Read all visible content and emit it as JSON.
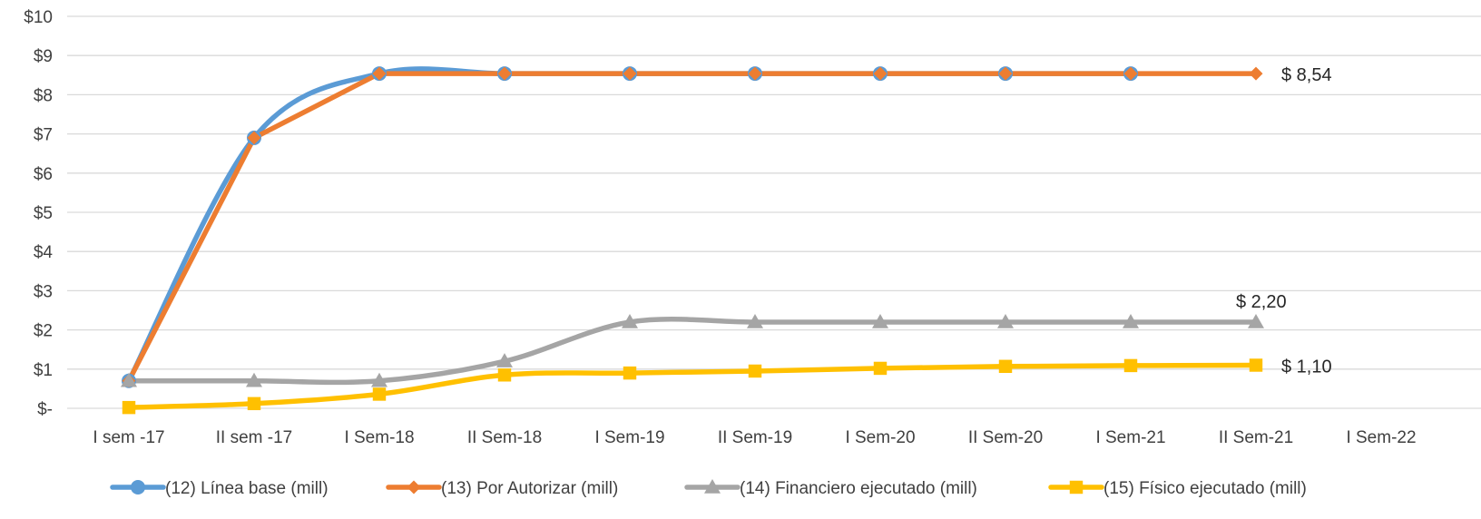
{
  "chart_data": {
    "type": "line",
    "categories": [
      "I sem -17",
      "II sem -17",
      "I Sem-18",
      "II Sem-18",
      "I Sem-19",
      "II Sem-19",
      "I Sem-20",
      "II Sem-20",
      "I Sem-21",
      "II Sem-21",
      "I Sem-22"
    ],
    "y_tick_labels": [
      "$-",
      "$1",
      "$2",
      "$3",
      "$4",
      "$5",
      "$6",
      "$7",
      "$8",
      "$9",
      "$10"
    ],
    "ylim": [
      0,
      10
    ],
    "grid": true,
    "legend_position": "bottom",
    "series": [
      {
        "name": "(12) Línea base (mill)",
        "color": "#5B9BD5",
        "marker": "circle",
        "smooth": true,
        "values": [
          0.7,
          6.9,
          8.54,
          8.54,
          8.54,
          8.54,
          8.54,
          8.54,
          8.54,
          null,
          null
        ]
      },
      {
        "name": "(13) Por Autorizar (mill)",
        "color": "#ED7D31",
        "marker": "diamond",
        "smooth": false,
        "values": [
          0.7,
          6.9,
          8.54,
          8.54,
          8.54,
          8.54,
          8.54,
          8.54,
          8.54,
          8.54,
          null
        ]
      },
      {
        "name": "(14) Financiero ejecutado (mill)",
        "color": "#A5A5A5",
        "marker": "triangle",
        "smooth": true,
        "values": [
          0.7,
          0.7,
          0.7,
          1.2,
          2.2,
          2.2,
          2.2,
          2.2,
          2.2,
          2.2,
          null
        ]
      },
      {
        "name": "(15) Físico ejecutado (mill)",
        "color": "#FFC000",
        "marker": "square",
        "smooth": true,
        "values": [
          0.02,
          0.12,
          0.36,
          0.85,
          0.9,
          0.95,
          1.02,
          1.07,
          1.09,
          1.1,
          null
        ]
      }
    ],
    "annotations": [
      {
        "text": "$ 8,54",
        "series": 1,
        "index": 9
      },
      {
        "text": "$ 2,20",
        "series": 2,
        "index": 9
      },
      {
        "text": "$ 1,10",
        "series": 3,
        "index": 9
      }
    ]
  }
}
